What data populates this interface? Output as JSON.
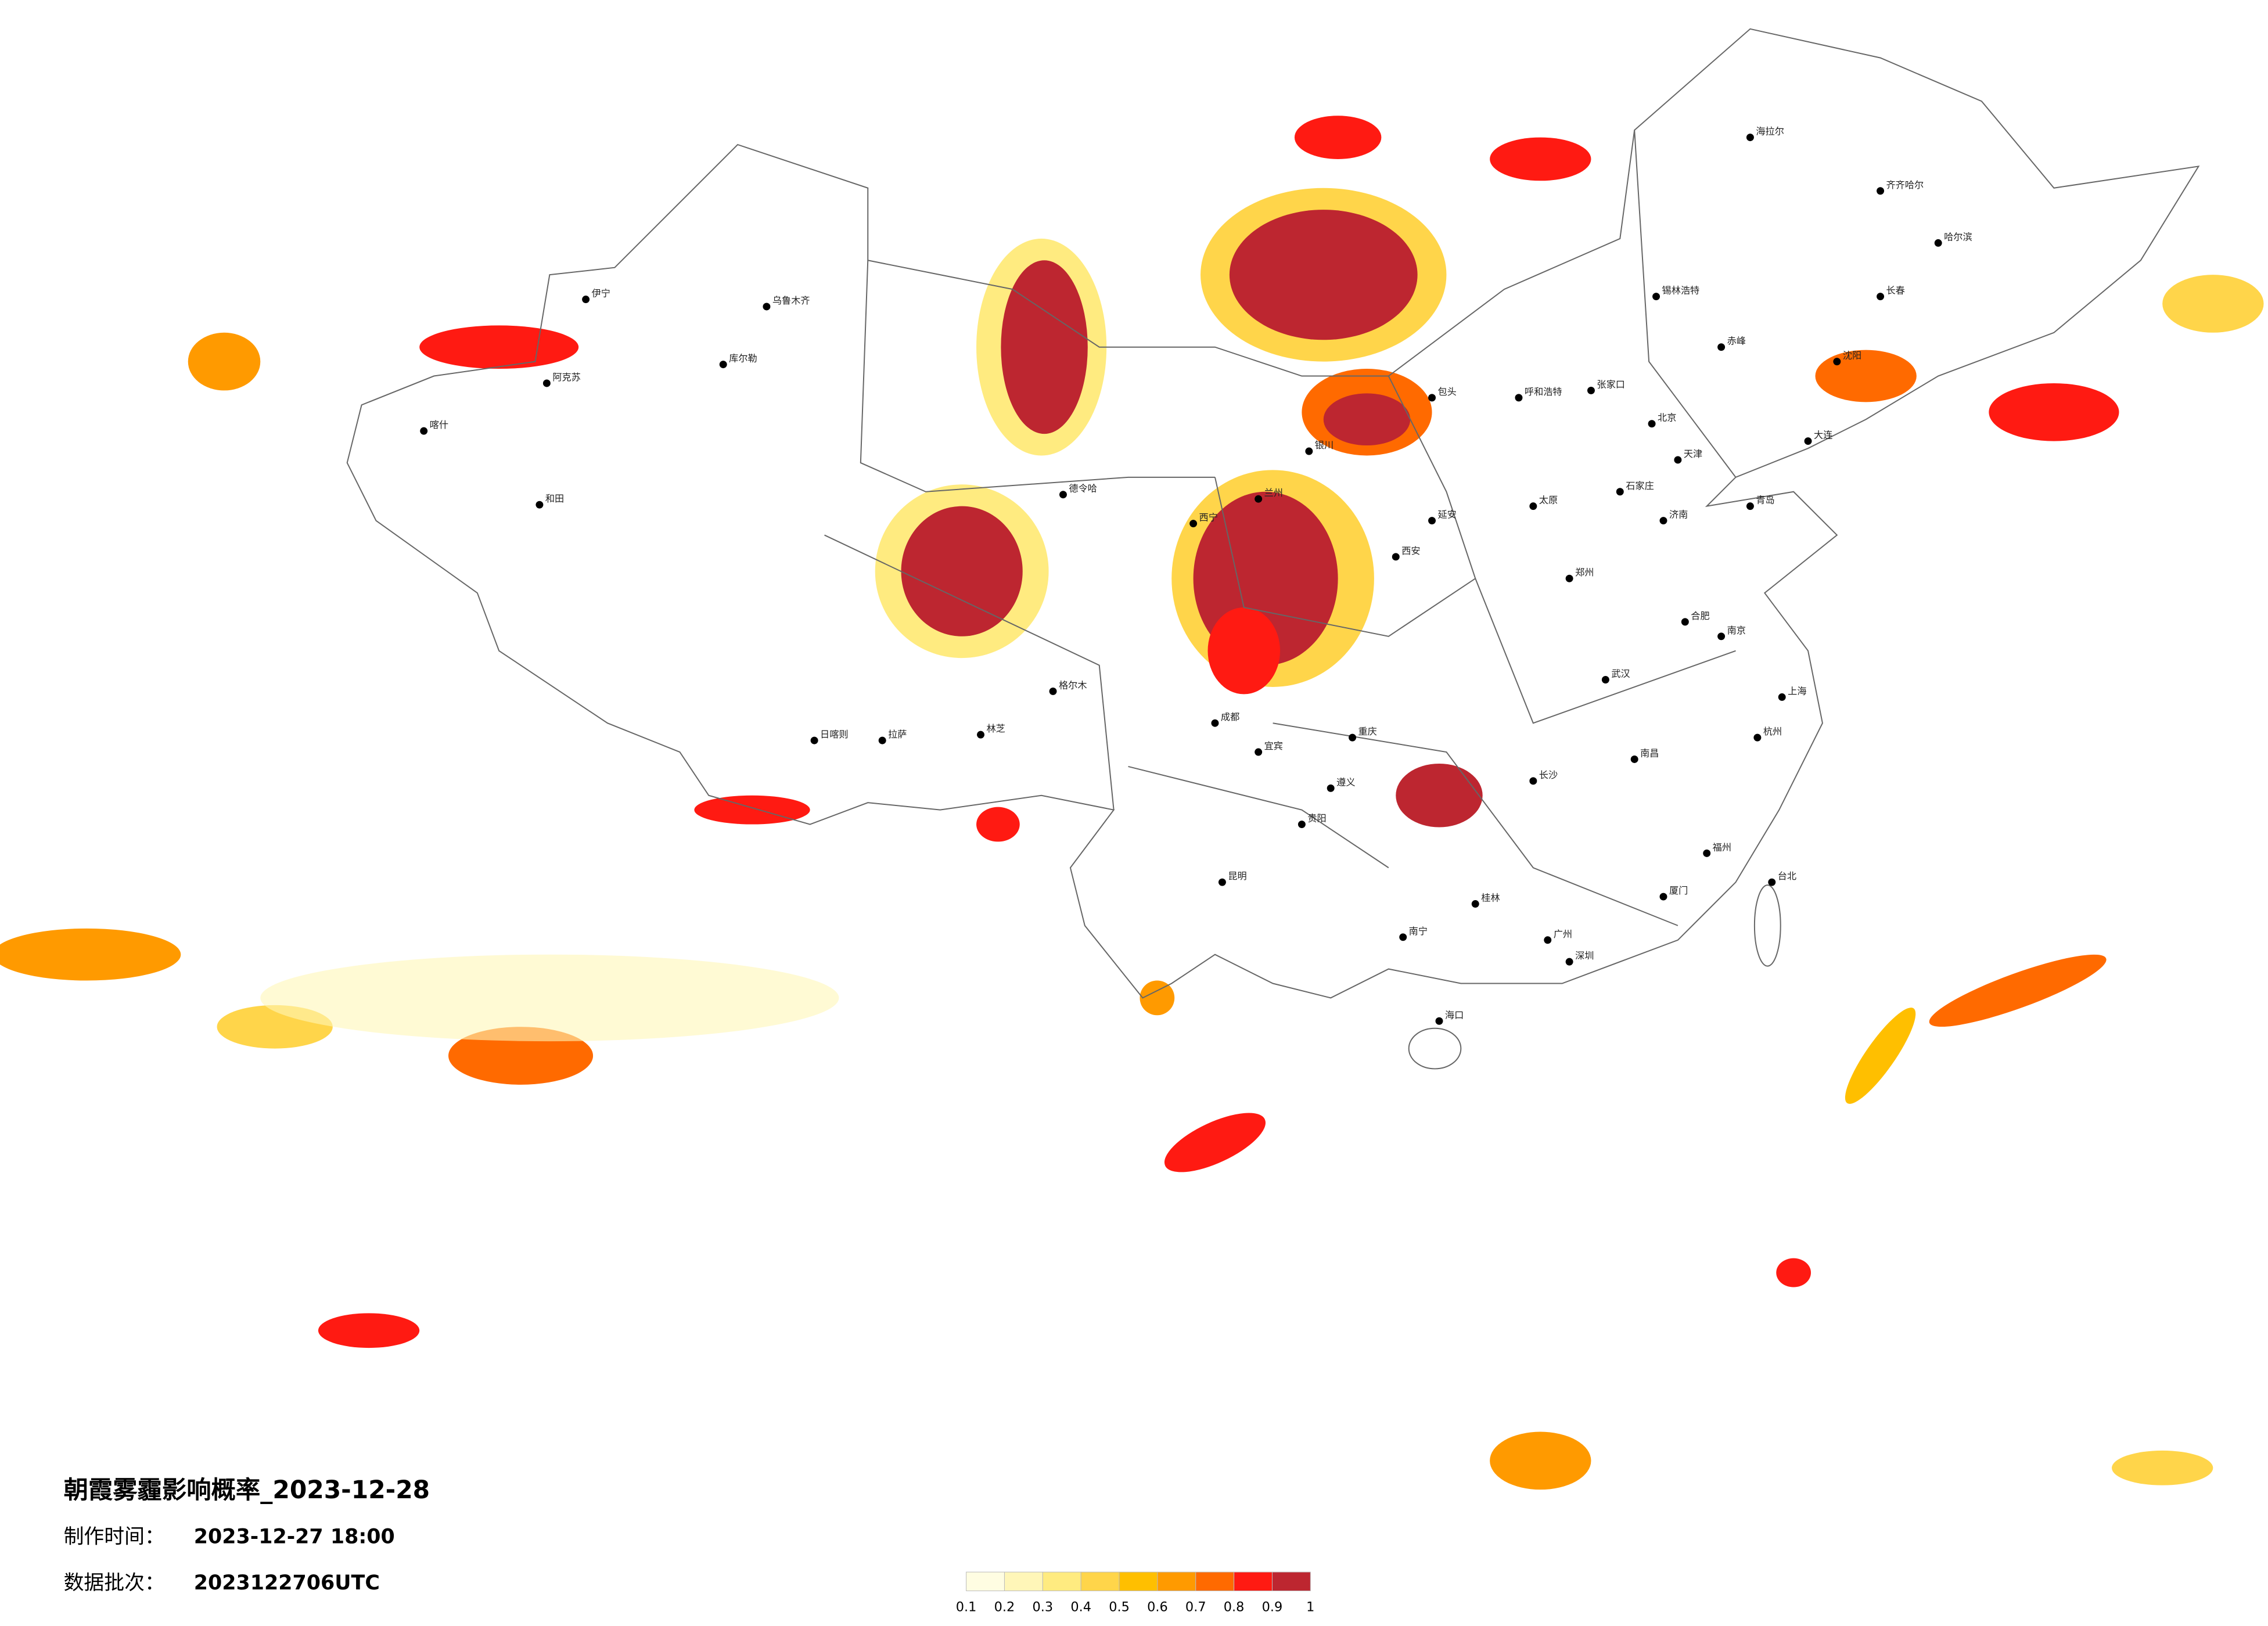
{
  "header": {
    "title": "朝霞雾霾影响概率_2023-12-28",
    "made_label": "制作时间：",
    "made_time": "2023-12-27 18:00",
    "batch_label": "数据批次：",
    "batch": "2023122706UTC"
  },
  "legend": {
    "ticks": [
      0.1,
      0.2,
      0.3,
      0.4,
      0.5,
      0.6,
      0.7,
      0.8,
      0.9,
      1
    ],
    "colors": [
      "#fffde2",
      "#fff6b8",
      "#ffeb80",
      "#ffd54a",
      "#ffbf00",
      "#ff9a00",
      "#ff6a00",
      "#ff1a12",
      "#bd2630"
    ]
  },
  "cities": [
    "北京",
    "天津",
    "石家庄",
    "太原",
    "呼和浩特",
    "济南",
    "郑州",
    "西安",
    "兰州",
    "西宁",
    "银川",
    "乌鲁木齐",
    "拉萨",
    "成都",
    "重庆",
    "贵阳",
    "昆明",
    "南宁",
    "广州",
    "长沙",
    "武汉",
    "南昌",
    "合肥",
    "南京",
    "上海",
    "杭州",
    "福州",
    "台北",
    "海口",
    "沈阳",
    "长春",
    "哈尔滨",
    "大连",
    "青岛",
    "喀什",
    "和田",
    "伊宁",
    "阿克苏",
    "库尔勒",
    "格尔木",
    "德令哈",
    "日喀则",
    "林芝",
    "包头",
    "锡林浩特",
    "海拉尔",
    "齐齐哈尔",
    "张家口",
    "赤峰",
    "厦门",
    "深圳",
    "桂林",
    "遵义",
    "宜宾",
    "延安"
  ]
}
